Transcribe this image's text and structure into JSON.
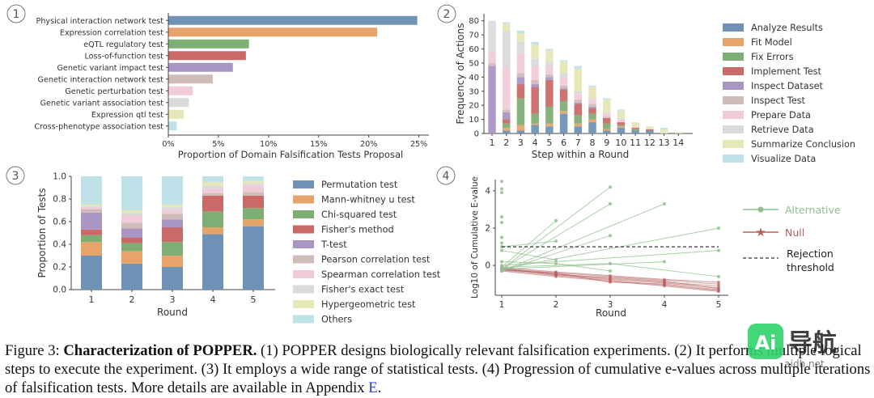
{
  "panel_labels": [
    "1",
    "2",
    "3",
    "4"
  ],
  "caption": {
    "prefix": "Figure 3: ",
    "title_a": "Characterization of P",
    "title_b": "OPPER",
    "title_c": ".",
    "t1": " (1) P",
    "t2": "OPPER",
    "t3": " designs biologically relevant falsification experiments. (2) It performs multiple logical steps to execute the experiment. (3) It employs a wide range of statistical tests. (4) Progression of cumulative e-values across multiple iterations of falsification tests. More details are available in Appendix ",
    "appendix": "E",
    "end": "."
  },
  "watermark": {
    "text_a": "Ai",
    "text_b": "导航",
    "url": "aidh.net"
  },
  "chart_data": [
    {
      "type": "bar",
      "orientation": "horizontal",
      "categories": [
        "Physical interaction network test",
        "Expression correlation test",
        "eQTL regulatory test",
        "Loss-of-function test",
        "Genetic variant impact test",
        "Genetic interaction network test",
        "Genetic perturbation test",
        "Genetic variant association test",
        "Expression qtl test",
        "Cross-phenotype association test"
      ],
      "values": [
        24.8,
        20.8,
        8.0,
        7.7,
        6.4,
        4.4,
        2.4,
        2.0,
        1.5,
        0.8
      ],
      "colors": [
        "#6f93b6",
        "#e6a46b",
        "#7fae74",
        "#c96a68",
        "#a995c4",
        "#cfbcb8",
        "#f1cbd8",
        "#dadada",
        "#e6e7b6",
        "#bfe1e8"
      ],
      "xlabel": "Proportion of Domain Falsification Tests Proposal",
      "xticks": [
        "0%",
        "5%",
        "10%",
        "15%",
        "20%",
        "25%"
      ],
      "xlim": [
        0,
        26
      ]
    },
    {
      "type": "bar",
      "stacked": true,
      "categories": [
        "1",
        "2",
        "3",
        "4",
        "5",
        "6",
        "7",
        "8",
        "9",
        "10",
        "11",
        "12",
        "13",
        "14"
      ],
      "series": [
        {
          "name": "Analyze Results",
          "color": "#6f93b6",
          "values": [
            0,
            2,
            2,
            6,
            5,
            14,
            5,
            8,
            2,
            4,
            2,
            2,
            0,
            0
          ]
        },
        {
          "name": "Fit Model",
          "color": "#e6a46b",
          "values": [
            0,
            2,
            4,
            1,
            2,
            2,
            2,
            2,
            1,
            1,
            0,
            0,
            0,
            0
          ]
        },
        {
          "name": "Fix Errors",
          "color": "#7fae74",
          "values": [
            0,
            3,
            19,
            7,
            12,
            7,
            6,
            4,
            4,
            1,
            1,
            0,
            0,
            0
          ]
        },
        {
          "name": "Implement Test",
          "color": "#c96a68",
          "values": [
            0,
            3,
            10,
            19,
            19,
            8,
            8,
            4,
            4,
            2,
            1,
            1,
            0,
            0
          ]
        },
        {
          "name": "Inspect Dataset",
          "color": "#a995c4",
          "values": [
            48,
            5,
            5,
            2,
            2,
            1,
            1,
            1,
            0,
            0,
            0,
            0,
            0,
            0
          ]
        },
        {
          "name": "Inspect Test",
          "color": "#cfbcb8",
          "values": [
            2,
            2,
            3,
            3,
            2,
            2,
            2,
            2,
            1,
            0,
            0,
            0,
            0,
            0
          ]
        },
        {
          "name": "Prepare Data",
          "color": "#f1cbd8",
          "values": [
            8,
            30,
            14,
            10,
            6,
            6,
            4,
            3,
            2,
            2,
            1,
            0,
            0,
            0
          ]
        },
        {
          "name": "Retrieve Data",
          "color": "#dadada",
          "values": [
            22,
            26,
            8,
            5,
            3,
            3,
            2,
            1,
            1,
            1,
            0,
            0,
            0,
            0
          ]
        },
        {
          "name": "Summarize Conclusion",
          "color": "#e6e7b6",
          "values": [
            0,
            5,
            6,
            10,
            8,
            8,
            16,
            8,
            9,
            5,
            3,
            2,
            3,
            1
          ]
        },
        {
          "name": "Visualize Data",
          "color": "#bfe1e8",
          "values": [
            0,
            1,
            2,
            2,
            1,
            1,
            2,
            1,
            1,
            1,
            0,
            0,
            1,
            0
          ]
        }
      ],
      "xlabel": "Step within a Round",
      "ylabel": "Frequency of Actions",
      "yticks": [
        "0",
        "10",
        "20",
        "30",
        "40",
        "50",
        "60",
        "70",
        "80"
      ],
      "ylim": [
        0,
        85
      ],
      "legend": "right"
    },
    {
      "type": "bar",
      "stacked": true,
      "categories": [
        "1",
        "2",
        "3",
        "4",
        "5"
      ],
      "series": [
        {
          "name": "Permutation test",
          "color": "#6f93b6",
          "values": [
            0.3,
            0.23,
            0.2,
            0.49,
            0.56
          ]
        },
        {
          "name": "Mann-whitney u test",
          "color": "#e6a46b",
          "values": [
            0.12,
            0.11,
            0.1,
            0.06,
            0.06
          ]
        },
        {
          "name": "Chi-squared test",
          "color": "#7fae74",
          "values": [
            0.06,
            0.07,
            0.12,
            0.14,
            0.1
          ]
        },
        {
          "name": "Fisher's method",
          "color": "#c96a68",
          "values": [
            0.05,
            0.05,
            0.13,
            0.14,
            0.11
          ]
        },
        {
          "name": "T-test",
          "color": "#a995c4",
          "values": [
            0.15,
            0.08,
            0.07,
            0.0,
            0.0
          ]
        },
        {
          "name": "Pearson correlation test",
          "color": "#cfbcb8",
          "values": [
            0.03,
            0.05,
            0.05,
            0.02,
            0.03
          ]
        },
        {
          "name": "Spearman correlation test",
          "color": "#f1cbd8",
          "values": [
            0.02,
            0.06,
            0.03,
            0.04,
            0.06
          ]
        },
        {
          "name": "Fisher's exact test",
          "color": "#dadada",
          "values": [
            0.01,
            0.03,
            0.03,
            0.03,
            0.02
          ]
        },
        {
          "name": "Hypergeometric test",
          "color": "#e6e7b6",
          "values": [
            0.01,
            0.02,
            0.02,
            0.03,
            0.02
          ]
        },
        {
          "name": "Others",
          "color": "#bfe1e8",
          "values": [
            0.25,
            0.3,
            0.25,
            0.05,
            0.04
          ]
        }
      ],
      "xlabel": "Round",
      "ylabel": "Proportion of Tests",
      "yticks": [
        "0.0",
        "0.2",
        "0.4",
        "0.6",
        "0.8",
        "1.0"
      ],
      "ylim": [
        0,
        1
      ],
      "legend": "right"
    },
    {
      "type": "line",
      "x": [
        1,
        2,
        3,
        4,
        5
      ],
      "xlabel": "Round",
      "ylabel": "Log10 of Cumulative E-value",
      "yticks": [
        "0",
        "2",
        "4"
      ],
      "ylim": [
        -1.6,
        4.6
      ],
      "threshold": 1.0,
      "legend": "right",
      "legend_items": [
        {
          "label": "Alternative",
          "color": "#8fbf8e"
        },
        {
          "label": "Null",
          "color": "#b5615d"
        },
        {
          "label": "Rejection\nthreshold",
          "color": "#333333"
        }
      ],
      "alternative": [
        {
          "x": [
            1,
            3
          ],
          "y": [
            -0.2,
            4.2
          ]
        },
        {
          "x": [
            1,
            2
          ],
          "y": [
            -0.1,
            2.4
          ]
        },
        {
          "x": [
            1,
            3
          ],
          "y": [
            -0.2,
            3.3
          ]
        },
        {
          "x": [
            1,
            4
          ],
          "y": [
            -0.3,
            3.3
          ]
        },
        {
          "x": [
            1,
            2
          ],
          "y": [
            1.0,
            1.3
          ]
        },
        {
          "x": [
            1,
            3
          ],
          "y": [
            -0.3,
            1.6
          ]
        },
        {
          "x": [
            1,
            5
          ],
          "y": [
            -0.2,
            2.0
          ]
        },
        {
          "x": [
            1,
            2
          ],
          "y": [
            0.8,
            0.3
          ]
        },
        {
          "x": [
            1,
            4
          ],
          "y": [
            -0.2,
            0.2
          ]
        },
        {
          "x": [
            1,
            5
          ],
          "y": [
            0.0,
            0.8
          ]
        },
        {
          "x": [
            1,
            2,
            3
          ],
          "y": [
            0.2,
            0.1,
            -0.3
          ]
        },
        {
          "x": [
            1,
            3,
            5
          ],
          "y": [
            -0.1,
            0.1,
            -0.6
          ]
        },
        {
          "x": [
            1
          ],
          "y": [
            4.5
          ]
        },
        {
          "x": [
            1
          ],
          "y": [
            4.1
          ]
        },
        {
          "x": [
            1
          ],
          "y": [
            3.9
          ]
        },
        {
          "x": [
            1
          ],
          "y": [
            2.6
          ]
        },
        {
          "x": [
            1
          ],
          "y": [
            2.3
          ]
        },
        {
          "x": [
            1
          ],
          "y": [
            1.5
          ]
        },
        {
          "x": [
            1
          ],
          "y": [
            1.2
          ]
        }
      ],
      "null": [
        {
          "x": [
            1,
            2,
            3,
            4,
            5
          ],
          "y": [
            -0.15,
            -0.4,
            -0.6,
            -0.8,
            -1.0
          ]
        },
        {
          "x": [
            1,
            2,
            3,
            4,
            5
          ],
          "y": [
            -0.2,
            -0.5,
            -0.75,
            -0.95,
            -1.2
          ]
        },
        {
          "x": [
            1,
            2,
            3,
            4,
            5
          ],
          "y": [
            -0.25,
            -0.55,
            -0.8,
            -1.05,
            -1.35
          ]
        },
        {
          "x": [
            1,
            2,
            3,
            4,
            5
          ],
          "y": [
            -0.1,
            -0.35,
            -0.55,
            -0.75,
            -0.9
          ]
        },
        {
          "x": [
            1,
            2,
            3,
            4,
            5
          ],
          "y": [
            -0.3,
            -0.6,
            -0.85,
            -1.1,
            -1.4
          ]
        },
        {
          "x": [
            1,
            2,
            3,
            4,
            5
          ],
          "y": [
            -0.2,
            -0.45,
            -0.7,
            -0.9,
            -1.1
          ]
        },
        {
          "x": [
            1,
            2,
            3,
            4,
            5
          ],
          "y": [
            -0.15,
            -0.5,
            -0.65,
            -0.85,
            -1.25
          ]
        },
        {
          "x": [
            1,
            2,
            3,
            4,
            5
          ],
          "y": [
            -0.25,
            -0.4,
            -0.9,
            -1.0,
            -1.3
          ]
        }
      ]
    }
  ]
}
